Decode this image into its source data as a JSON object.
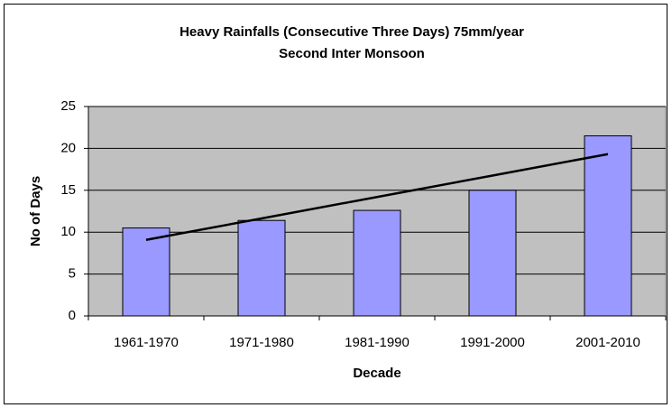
{
  "chart_data": {
    "type": "bar",
    "title": "Heavy Rainfalls (Consecutive Three Days) 75mm/year",
    "subtitle": "Second Inter Monsoon",
    "x_label": "Decade",
    "y_label": "No of Days",
    "categories": [
      "1961-1970",
      "1971-1980",
      "1981-1990",
      "1991-2000",
      "2001-2010"
    ],
    "values": [
      10.5,
      11.4,
      12.6,
      15,
      21.5
    ],
    "color": "#9999ff",
    "trendline": {
      "values": [
        9.08,
        11.64,
        14.2,
        16.76,
        19.32
      ],
      "color": "#000000"
    },
    "ylim": [
      0,
      25
    ],
    "yticks": [
      0,
      5,
      10,
      15,
      20,
      25
    ],
    "grid": true
  }
}
